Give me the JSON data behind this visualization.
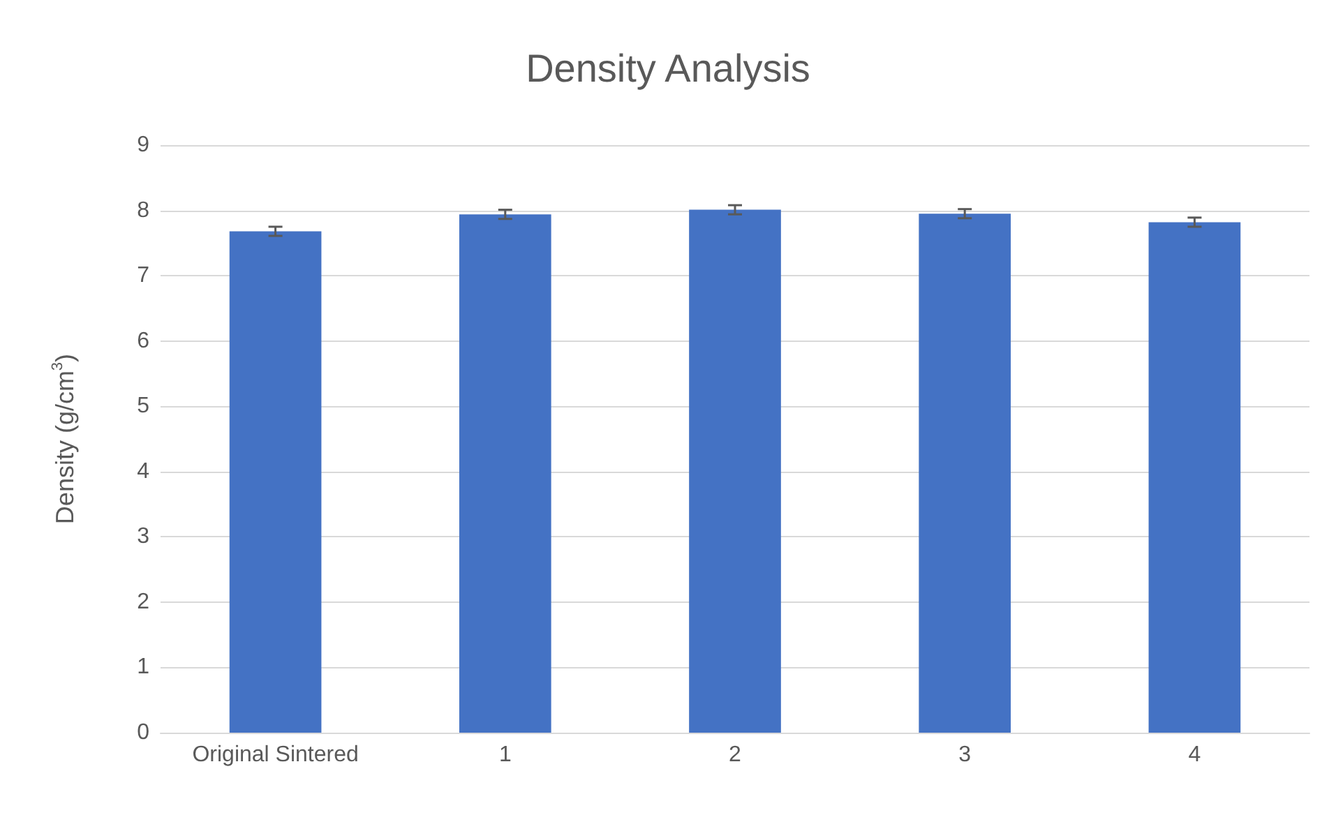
{
  "chart_data": {
    "type": "bar",
    "title": "Density Analysis",
    "ylabel": "Density (g/cm$^{3}$)",
    "categories": [
      "Original Sintered",
      "1",
      "2",
      "3",
      "4"
    ],
    "values": [
      7.68,
      7.94,
      8.01,
      7.95,
      7.82
    ],
    "errors": [
      0.07,
      0.07,
      0.07,
      0.07,
      0.07
    ],
    "color": "#4472c4",
    "ylim": [
      0,
      9
    ],
    "yticks": [
      0,
      1,
      2,
      3,
      4,
      5,
      6,
      7,
      8,
      9
    ],
    "grid": "y"
  }
}
